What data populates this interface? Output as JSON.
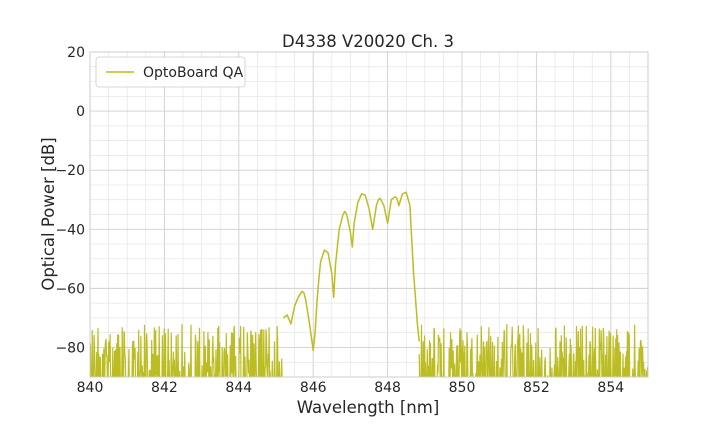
{
  "chart_data": {
    "type": "line",
    "title": "D4338 V20020 Ch. 3",
    "xlabel": "Wavelength [nm]",
    "ylabel": "Optical Power [dB]",
    "xlim": [
      840,
      855
    ],
    "ylim": [
      -90,
      20
    ],
    "x_ticks": [
      840,
      842,
      844,
      846,
      848,
      850,
      852,
      854
    ],
    "x_tick_labels": [
      "840",
      "842",
      "844",
      "846",
      "848",
      "850",
      "852",
      "854"
    ],
    "y_ticks": [
      20,
      0,
      -20,
      -40,
      -60,
      -80
    ],
    "y_tick_labels": [
      "20",
      "0",
      "−20",
      "−40",
      "−60",
      "−80"
    ],
    "grid": true,
    "legend_position": "top-left",
    "series": [
      {
        "name": "OptoBoard QA",
        "color": "#bcbd22",
        "x": [
          845.2,
          845.3,
          845.4,
          845.5,
          845.6,
          845.7,
          845.75,
          845.8,
          845.9,
          846.0,
          846.05,
          846.1,
          846.15,
          846.2,
          846.3,
          846.4,
          846.5,
          846.55,
          846.6,
          846.7,
          846.8,
          846.85,
          846.9,
          847.0,
          847.05,
          847.1,
          847.2,
          847.3,
          847.4,
          847.5,
          847.6,
          847.7,
          847.75,
          847.8,
          847.9,
          848.0,
          848.1,
          848.2,
          848.25,
          848.3,
          848.4,
          848.5,
          848.6,
          848.7,
          848.8,
          848.85
        ],
        "y": [
          -70,
          -69,
          -72,
          -66,
          -63,
          -61,
          -61.5,
          -64,
          -72,
          -81,
          -75,
          -65,
          -57,
          -51,
          -47,
          -48,
          -55,
          -63,
          -52,
          -40,
          -35,
          -34,
          -35,
          -41,
          -46,
          -38,
          -31,
          -28,
          -28.5,
          -33,
          -40,
          -32,
          -30,
          -29.5,
          -32,
          -38,
          -30,
          -29,
          -29.5,
          -32,
          -28,
          -27.5,
          -32,
          -55,
          -72,
          -78
        ]
      }
    ],
    "noise": {
      "bands": [
        [
          840,
          845.2
        ],
        [
          848.85,
          855
        ]
      ],
      "y_range": [
        -90,
        -72
      ],
      "color": "#bcbd22"
    }
  }
}
